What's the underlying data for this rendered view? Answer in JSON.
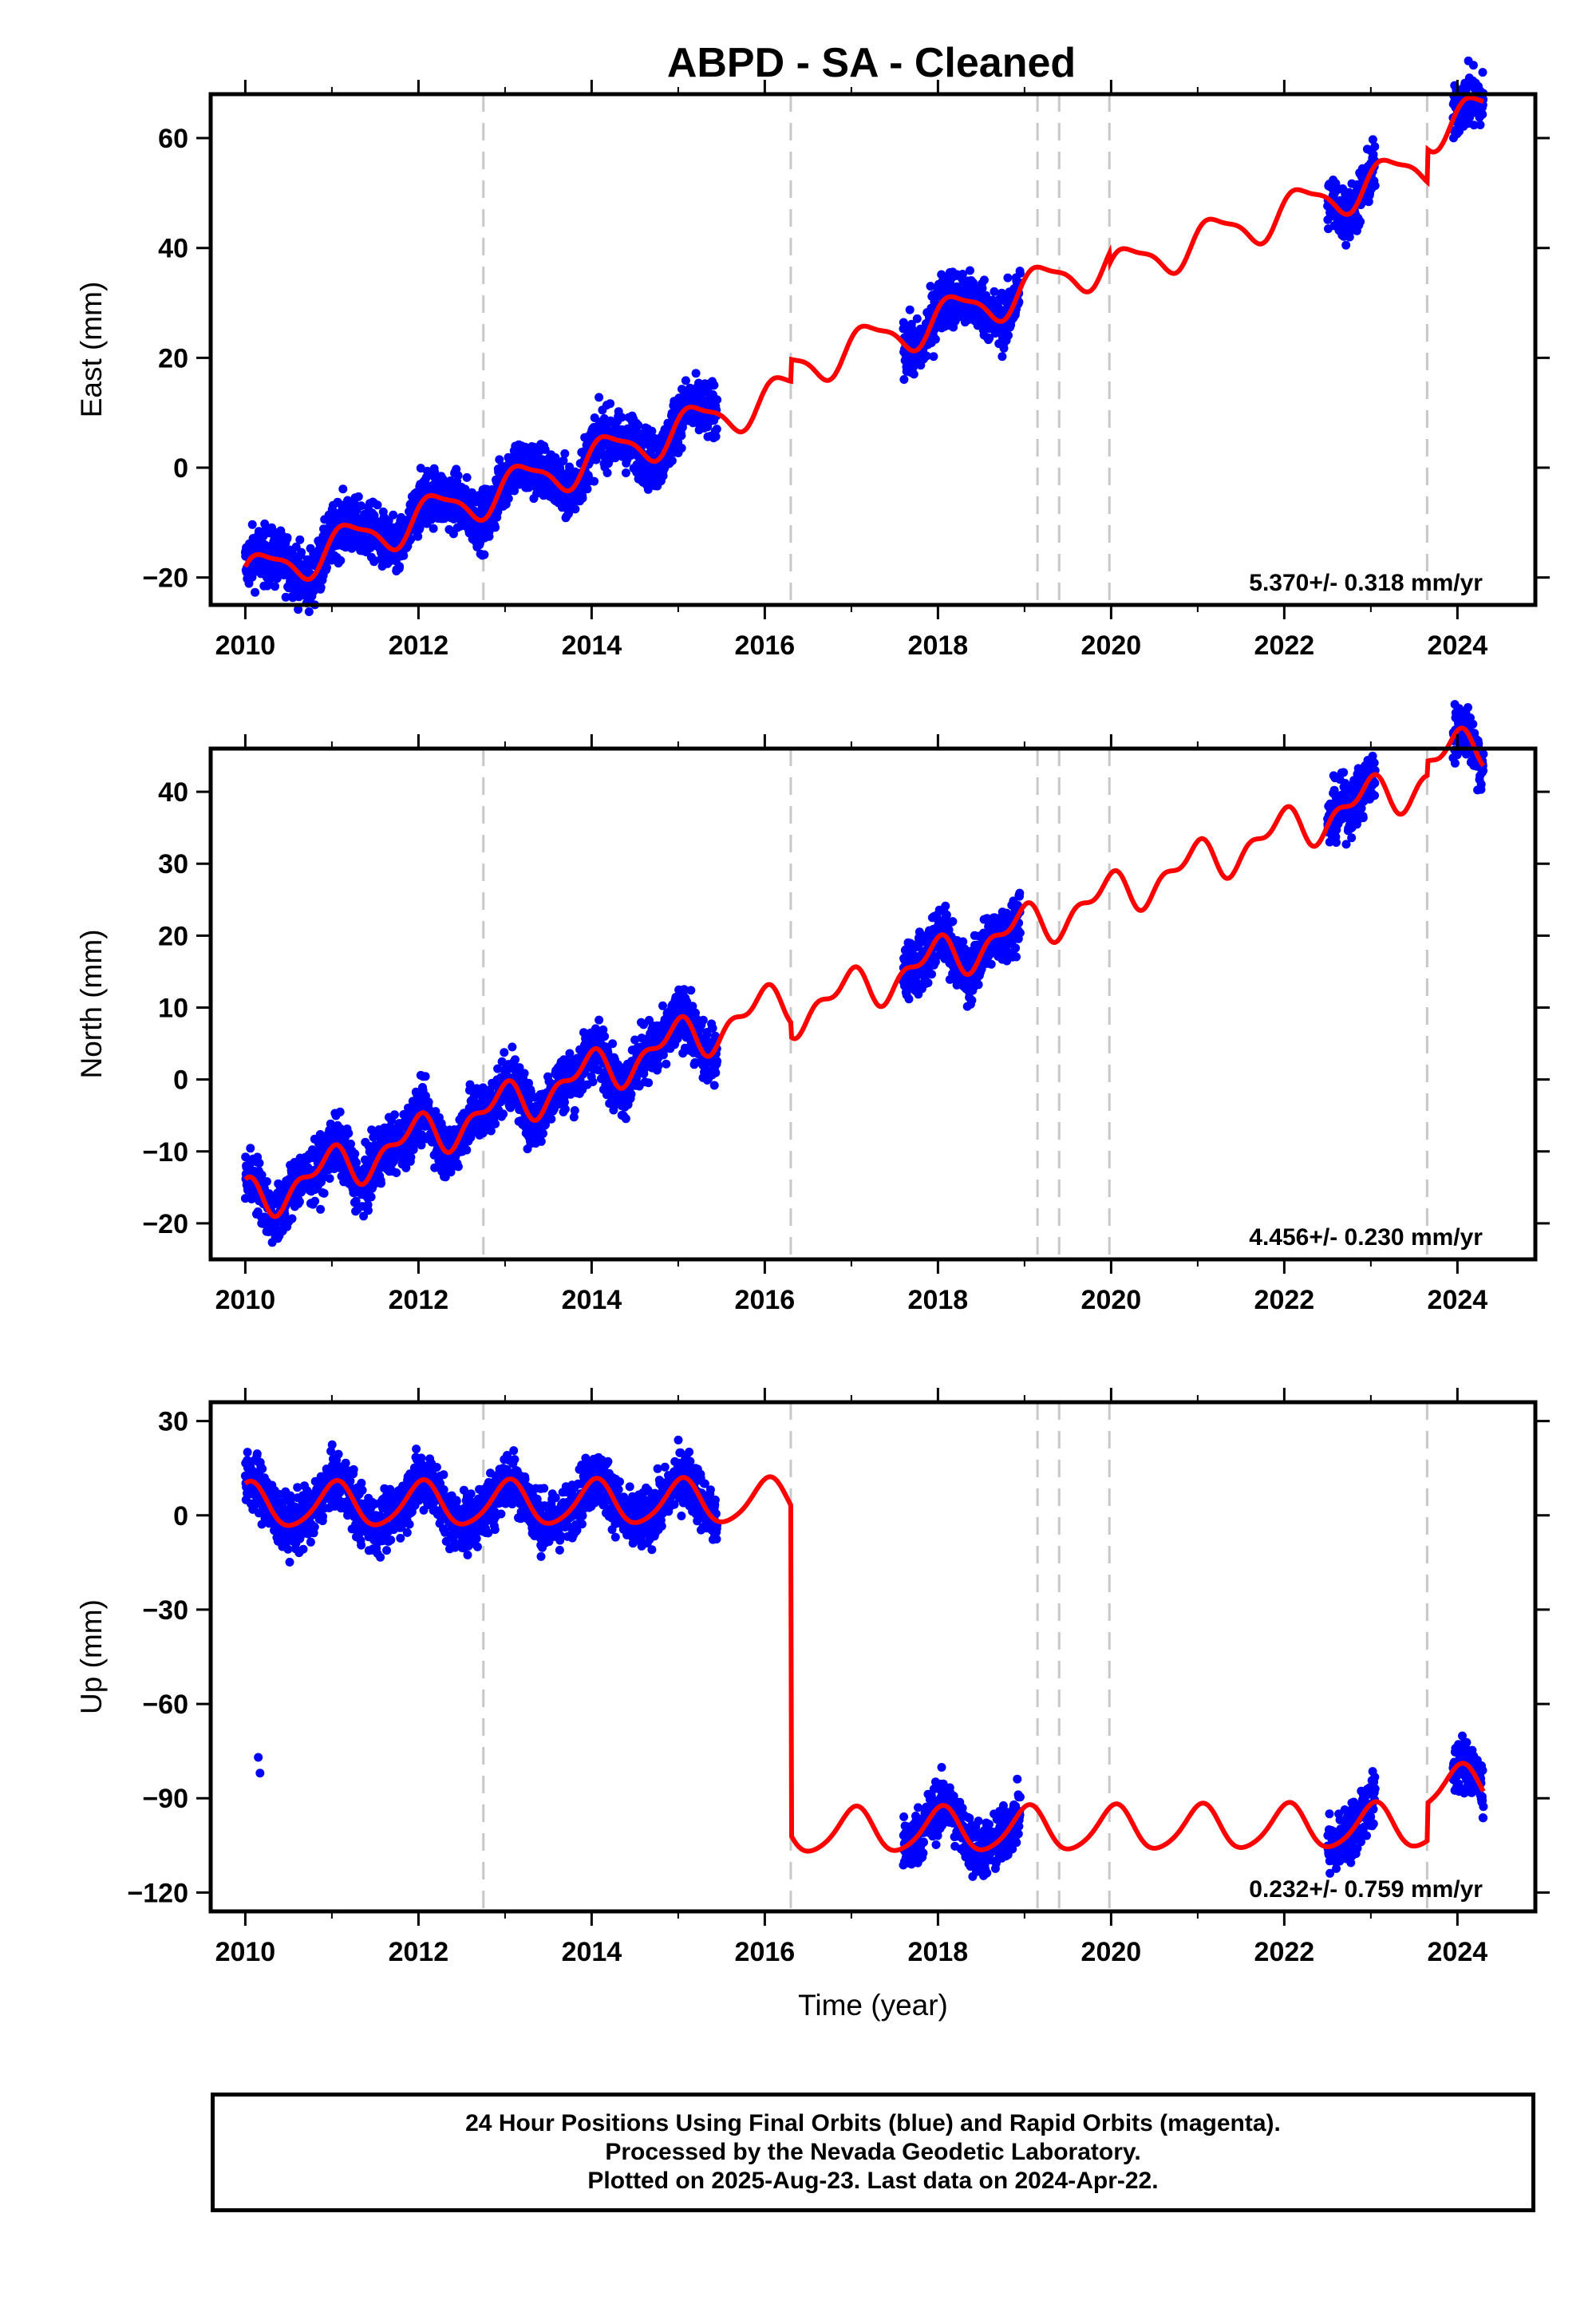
{
  "chart_data": [
    {
      "type": "scatter",
      "title": "ABPD  - SA - Cleaned",
      "xlabel": "",
      "ylabel": "East (mm)",
      "xlim": [
        2009.6,
        2024.9
      ],
      "ylim": [
        -25,
        68
      ],
      "x_ticks": [
        2010,
        2012,
        2014,
        2016,
        2018,
        2020,
        2022,
        2024
      ],
      "y_ticks": [
        -20,
        0,
        20,
        40,
        60
      ],
      "rate_text": "5.370+/- 0.318 mm/yr",
      "grid": false,
      "equipment_change_lines": [
        2012.75,
        2016.3,
        2019.15,
        2019.4,
        2019.98,
        2023.65
      ],
      "series": [
        {
          "role": "observations",
          "color": "#0000ff",
          "data_segments": [
            [
              2010.0,
              2015.45
            ],
            [
              2017.6,
              2018.95
            ],
            [
              2022.5,
              2023.05
            ],
            [
              2023.95,
              2024.3
            ]
          ]
        },
        {
          "role": "model",
          "color": "#ff0000",
          "trend": {
            "ref_year": 2010.0,
            "offset": -20,
            "rate": 5.37
          },
          "seasonal": {
            "annual_amp": 3.5,
            "annual_phase": 0.3,
            "semiannual_amp": 1.0,
            "semiannual_phase": 1.2
          },
          "steps": [
            {
              "year": 2016.3,
              "size": 4
            },
            {
              "year": 2019.98,
              "size": -2
            },
            {
              "year": 2023.65,
              "size": 6
            }
          ],
          "x_range": [
            2010.0,
            2024.3
          ]
        }
      ]
    },
    {
      "type": "scatter",
      "xlabel": "",
      "ylabel": "North (mm)",
      "xlim": [
        2009.6,
        2024.9
      ],
      "ylim": [
        -25,
        46
      ],
      "x_ticks": [
        2010,
        2012,
        2014,
        2016,
        2018,
        2020,
        2022,
        2024
      ],
      "y_ticks": [
        -20,
        -10,
        0,
        10,
        20,
        30,
        40
      ],
      "rate_text": "4.456+/- 0.230 mm/yr",
      "grid": false,
      "equipment_change_lines": [
        2012.75,
        2016.3,
        2019.15,
        2019.4,
        2019.98,
        2023.65
      ],
      "series": [
        {
          "role": "observations",
          "color": "#0000ff",
          "data_segments": [
            [
              2010.0,
              2015.45
            ],
            [
              2017.6,
              2018.95
            ],
            [
              2022.5,
              2023.05
            ],
            [
              2023.95,
              2024.3
            ]
          ]
        },
        {
          "role": "model",
          "color": "#ff0000",
          "trend": {
            "ref_year": 2010.0,
            "offset": -17,
            "rate": 4.456
          },
          "seasonal": {
            "annual_amp": 2.5,
            "annual_phase": 2.0,
            "semiannual_amp": 1.5,
            "semiannual_phase": 0.6
          },
          "steps": [
            {
              "year": 2016.3,
              "size": -2
            },
            {
              "year": 2023.65,
              "size": 2
            }
          ],
          "x_range": [
            2010.0,
            2024.3
          ]
        }
      ]
    },
    {
      "type": "scatter",
      "xlabel": "Time (year)",
      "ylabel": "Up (mm)",
      "xlim": [
        2009.6,
        2024.9
      ],
      "ylim": [
        -126,
        36
      ],
      "x_ticks": [
        2010,
        2012,
        2014,
        2016,
        2018,
        2020,
        2022,
        2024
      ],
      "y_ticks": [
        -120,
        -90,
        -60,
        -30,
        0,
        30
      ],
      "rate_text": "0.232+/- 0.759 mm/yr",
      "grid": false,
      "equipment_change_lines": [
        2012.75,
        2016.3,
        2019.15,
        2019.4,
        2019.98,
        2023.65
      ],
      "outliers": [
        [
          2010.15,
          -77
        ],
        [
          2010.17,
          -82
        ]
      ],
      "series": [
        {
          "role": "observations",
          "color": "#0000ff",
          "data_segments": [
            [
              2010.0,
              2015.45
            ],
            [
              2017.6,
              2018.95
            ],
            [
              2022.5,
              2023.05
            ],
            [
              2023.95,
              2024.3
            ]
          ]
        },
        {
          "role": "model",
          "color": "#ff0000",
          "trend": {
            "ref_year": 2010.0,
            "offset": 3,
            "rate": 0.232
          },
          "seasonal": {
            "annual_amp": 7.0,
            "annual_phase": 1.3,
            "semiannual_amp": 1.0,
            "semiannual_phase": 0.4
          },
          "steps": [
            {
              "year": 2016.3,
              "size": -105
            },
            {
              "year": 2023.65,
              "size": 12
            }
          ],
          "x_range": [
            2010.0,
            2024.3
          ]
        }
      ]
    }
  ],
  "footer": {
    "line1": "24 Hour Positions Using Final Orbits (blue) and Rapid Orbits (magenta).",
    "line2": "Processed by the Nevada Geodetic Laboratory.",
    "line3": "Plotted on 2025-Aug-23. Last data on 2024-Apr-22."
  }
}
